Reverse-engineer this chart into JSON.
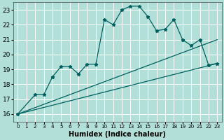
{
  "xlabel": "Humidex (Indice chaleur)",
  "background_color": "#b2e0d8",
  "grid_color": "#ffffff",
  "line_color": "#006060",
  "xlim": [
    -0.5,
    23.5
  ],
  "ylim": [
    15.5,
    23.5
  ],
  "yticks": [
    16,
    17,
    18,
    19,
    20,
    21,
    22,
    23
  ],
  "xticks": [
    0,
    1,
    2,
    3,
    4,
    5,
    6,
    7,
    8,
    9,
    10,
    11,
    12,
    13,
    14,
    15,
    16,
    17,
    18,
    19,
    20,
    21,
    22,
    23
  ],
  "series": [
    {
      "x": [
        0,
        2,
        3,
        4,
        5,
        6,
        7,
        8,
        9,
        10,
        11,
        12,
        13,
        14,
        15,
        16,
        17,
        18,
        19,
        20,
        21,
        22,
        23
      ],
      "y": [
        16.0,
        17.3,
        17.3,
        18.5,
        19.2,
        19.2,
        18.7,
        19.35,
        19.35,
        22.35,
        22.0,
        23.0,
        23.25,
        23.25,
        22.55,
        21.6,
        21.7,
        22.35,
        21.0,
        20.6,
        21.0,
        19.3,
        19.4
      ],
      "marker": "*",
      "markersize": 3.5,
      "linewidth": 0.9
    },
    {
      "x": [
        0,
        23
      ],
      "y": [
        16.0,
        19.4
      ],
      "marker": null,
      "linewidth": 0.9
    },
    {
      "x": [
        0,
        23
      ],
      "y": [
        16.0,
        21.0
      ],
      "marker": null,
      "linewidth": 0.9
    }
  ]
}
